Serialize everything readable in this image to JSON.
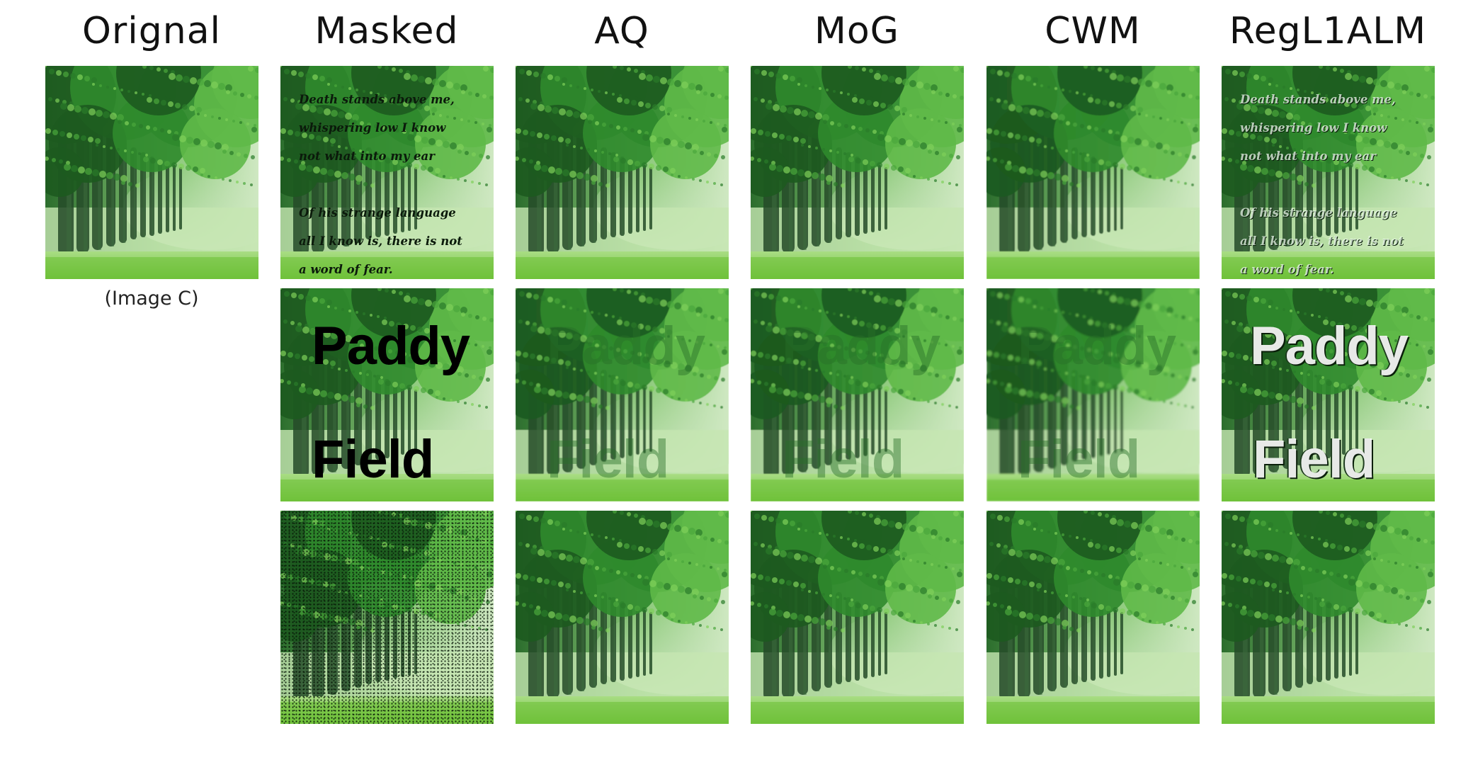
{
  "columns": [
    "Orignal",
    "Masked",
    "AQ",
    "MoG",
    "CWM",
    "RegL1ALM"
  ],
  "caption": "(Image C)",
  "masked_poem": "Death stands above me,\nwhispering low I know\nnot what into my ear\n\nOf his strange language\nall I know is, there is not\na word of fear.",
  "masked_words": [
    "Paddy",
    "Field"
  ],
  "colors": {
    "canopy_dark": "#1d5a1f",
    "canopy_mid": "#2f8a2c",
    "canopy_light": "#5fb948",
    "mist": "#cfe8c2",
    "grass": "#6fc23a",
    "trunk": "#254a28"
  }
}
